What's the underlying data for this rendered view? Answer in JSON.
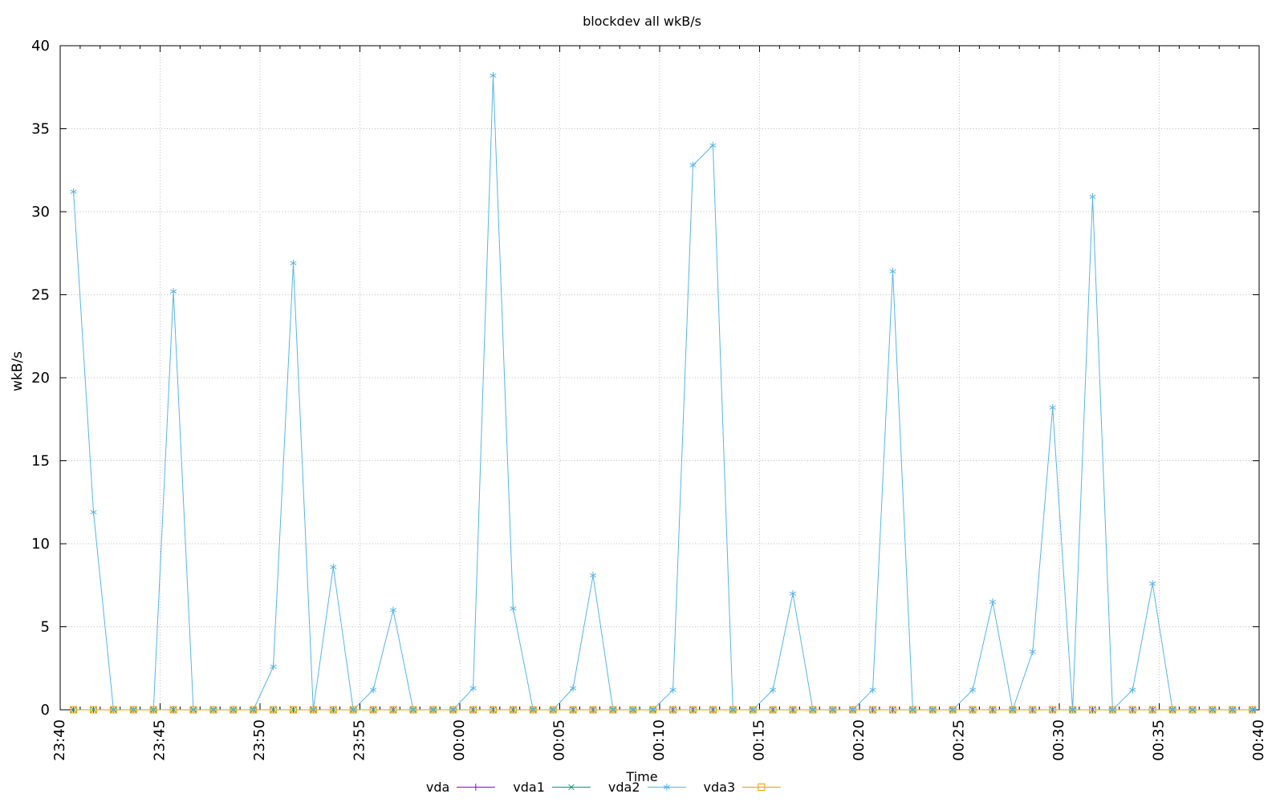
{
  "chart_data": {
    "type": "line",
    "title": "blockdev all wkB/s",
    "xlabel": "Time",
    "ylabel": "wkB/s",
    "ylim": [
      0,
      40
    ],
    "x_range": [
      "23:40",
      "00:40"
    ],
    "grid": true,
    "legend_position": "bottom-center",
    "y_ticks": [
      0,
      5,
      10,
      15,
      20,
      25,
      30,
      35,
      40
    ],
    "x_tick_labels": [
      "23:40",
      "23:45",
      "23:50",
      "23:55",
      "00:00",
      "00:05",
      "00:10",
      "00:15",
      "00:20",
      "00:25",
      "00:30",
      "00:35",
      "00:40"
    ],
    "times": [
      "23:40:40",
      "23:41:40",
      "23:42:40",
      "23:43:40",
      "23:44:40",
      "23:45:40",
      "23:46:40",
      "23:47:40",
      "23:48:40",
      "23:49:40",
      "23:50:40",
      "23:51:40",
      "23:52:40",
      "23:53:40",
      "23:54:40",
      "23:55:40",
      "23:56:40",
      "23:57:40",
      "23:58:40",
      "23:59:40",
      "00:00:40",
      "00:01:40",
      "00:02:40",
      "00:03:40",
      "00:04:40",
      "00:05:40",
      "00:06:40",
      "00:07:40",
      "00:08:40",
      "00:09:40",
      "00:10:40",
      "00:11:40",
      "00:12:40",
      "00:13:40",
      "00:14:40",
      "00:15:40",
      "00:16:40",
      "00:17:40",
      "00:18:40",
      "00:19:40",
      "00:20:40",
      "00:21:40",
      "00:22:40",
      "00:23:40",
      "00:24:40",
      "00:25:40",
      "00:26:40",
      "00:27:40",
      "00:28:40",
      "00:29:40",
      "00:30:40",
      "00:31:40",
      "00:32:40",
      "00:33:40",
      "00:34:40",
      "00:35:40",
      "00:36:40",
      "00:37:40",
      "00:38:40",
      "00:39:40"
    ],
    "series": [
      {
        "name": "vda",
        "color": "#9400d3",
        "marker": "plus",
        "values": [
          0,
          0,
          0,
          0,
          0,
          0,
          0,
          0,
          0,
          0,
          0,
          0,
          0,
          0,
          0,
          0,
          0,
          0,
          0,
          0,
          0,
          0,
          0,
          0,
          0,
          0,
          0,
          0,
          0,
          0,
          0,
          0,
          0,
          0,
          0,
          0,
          0,
          0,
          0,
          0,
          0,
          0,
          0,
          0,
          0,
          0,
          0,
          0,
          0,
          0,
          0,
          0,
          0,
          0,
          0,
          0,
          0,
          0,
          0,
          0
        ]
      },
      {
        "name": "vda1",
        "color": "#009e73",
        "marker": "cross",
        "values": [
          0,
          0,
          0,
          0,
          0,
          0,
          0,
          0,
          0,
          0,
          0,
          0,
          0,
          0,
          0,
          0,
          0,
          0,
          0,
          0,
          0,
          0,
          0,
          0,
          0,
          0,
          0,
          0,
          0,
          0,
          0,
          0,
          0,
          0,
          0,
          0,
          0,
          0,
          0,
          0,
          0,
          0,
          0,
          0,
          0,
          0,
          0,
          0,
          0,
          0,
          0,
          0,
          0,
          0,
          0,
          0,
          0,
          0,
          0,
          0
        ]
      },
      {
        "name": "vda2",
        "color": "#56b4e9",
        "marker": "asterisk",
        "values": [
          31.2,
          11.9,
          0,
          0,
          0,
          25.2,
          0,
          0,
          0,
          0,
          2.6,
          26.9,
          0,
          8.6,
          0,
          1.2,
          6.0,
          0,
          0,
          0,
          1.3,
          38.2,
          6.1,
          0,
          0,
          1.3,
          8.1,
          0,
          0,
          0,
          1.2,
          32.8,
          34.0,
          0,
          0,
          1.2,
          7.0,
          0,
          0,
          0,
          1.2,
          26.4,
          0,
          0,
          0,
          1.2,
          6.5,
          0,
          3.5,
          18.2,
          0,
          30.9,
          0,
          1.2,
          7.6,
          0,
          0,
          0,
          0,
          0
        ]
      },
      {
        "name": "vda3",
        "color": "#e69f00",
        "marker": "open-square",
        "values": [
          0,
          0,
          0,
          0,
          0,
          0,
          0,
          0,
          0,
          0,
          0,
          0,
          0,
          0,
          0,
          0,
          0,
          0,
          0,
          0,
          0,
          0,
          0,
          0,
          0,
          0,
          0,
          0,
          0,
          0,
          0,
          0,
          0,
          0,
          0,
          0,
          0,
          0,
          0,
          0,
          0,
          0,
          0,
          0,
          0,
          0,
          0,
          0,
          0,
          0,
          0,
          0,
          0,
          0,
          0,
          0,
          0,
          0,
          0,
          0
        ]
      }
    ],
    "colors": {
      "axis": "#000000",
      "grid": "#b8b8b8",
      "text": "#000000",
      "background": "#ffffff"
    }
  }
}
